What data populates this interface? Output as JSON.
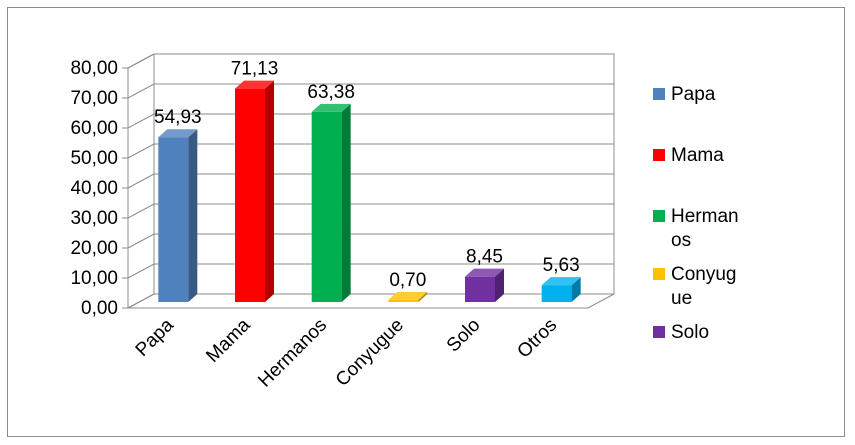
{
  "chart_data": {
    "type": "bar",
    "categories": [
      "Papa",
      "Mama",
      "Hermanos",
      "Conyugue",
      "Solo",
      "Otros"
    ],
    "values": [
      54.93,
      71.13,
      63.38,
      0.7,
      8.45,
      5.63
    ],
    "value_labels": [
      "54,93",
      "71,13",
      "63,38",
      "0,70",
      "8,45",
      "5,63"
    ],
    "colors": [
      "#4f81bd",
      "#ff0000",
      "#00b050",
      "#ffc000",
      "#7030a0",
      "#00b0f0"
    ],
    "ylim": [
      0,
      80
    ],
    "yticks": [
      "0,00",
      "10,00",
      "20,00",
      "30,00",
      "40,00",
      "50,00",
      "60,00",
      "70,00",
      "80,00"
    ],
    "grid": true,
    "three_d": true,
    "legend_position": "right",
    "legend": [
      {
        "lines": [
          "Papa"
        ],
        "color": "#4f81bd"
      },
      {
        "lines": [
          "Mama"
        ],
        "color": "#ff0000"
      },
      {
        "lines": [
          "Herman",
          "os"
        ],
        "color": "#00b050"
      },
      {
        "lines": [
          "Conyug",
          "ue"
        ],
        "color": "#ffc000"
      },
      {
        "lines": [
          "Solo"
        ],
        "color": "#7030a0"
      }
    ]
  }
}
